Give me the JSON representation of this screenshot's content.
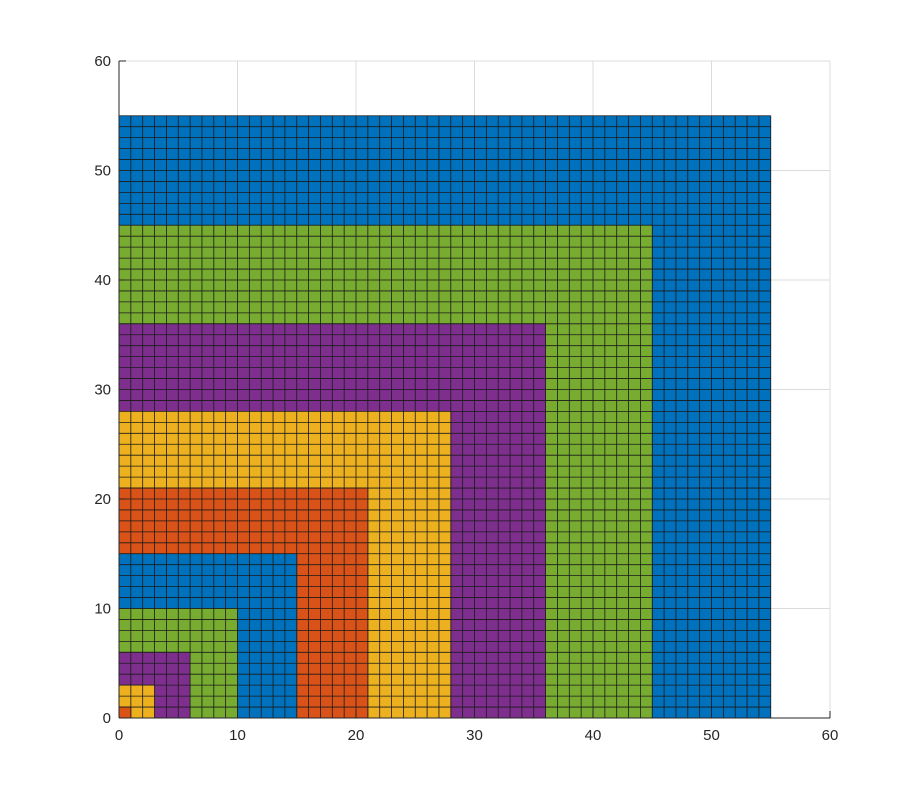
{
  "chart_data": {
    "type": "heatmap",
    "title": "",
    "xlabel": "",
    "ylabel": "",
    "xlim": [
      0,
      60
    ],
    "ylim": [
      0,
      60
    ],
    "xticks": [
      "0",
      "10",
      "20",
      "30",
      "40",
      "50",
      "60"
    ],
    "yticks": [
      "0",
      "10",
      "20",
      "30",
      "40",
      "50",
      "60"
    ],
    "grid": true,
    "description_values": "Nested squares of unit cells anchored at origin; each square side is a Fibonacci sum",
    "squares": [
      {
        "side": 55,
        "color": "#0072BD"
      },
      {
        "side": 45,
        "color": "#77AC30"
      },
      {
        "side": 36,
        "color": "#7E2F8E"
      },
      {
        "side": 28,
        "color": "#EDB120"
      },
      {
        "side": 21,
        "color": "#D95319"
      },
      {
        "side": 15,
        "color": "#0072BD"
      },
      {
        "side": 10,
        "color": "#77AC30"
      },
      {
        "side": 6,
        "color": "#7E2F8E"
      },
      {
        "side": 3,
        "color": "#EDB120"
      },
      {
        "side": 1,
        "color": "#D95319"
      }
    ]
  }
}
